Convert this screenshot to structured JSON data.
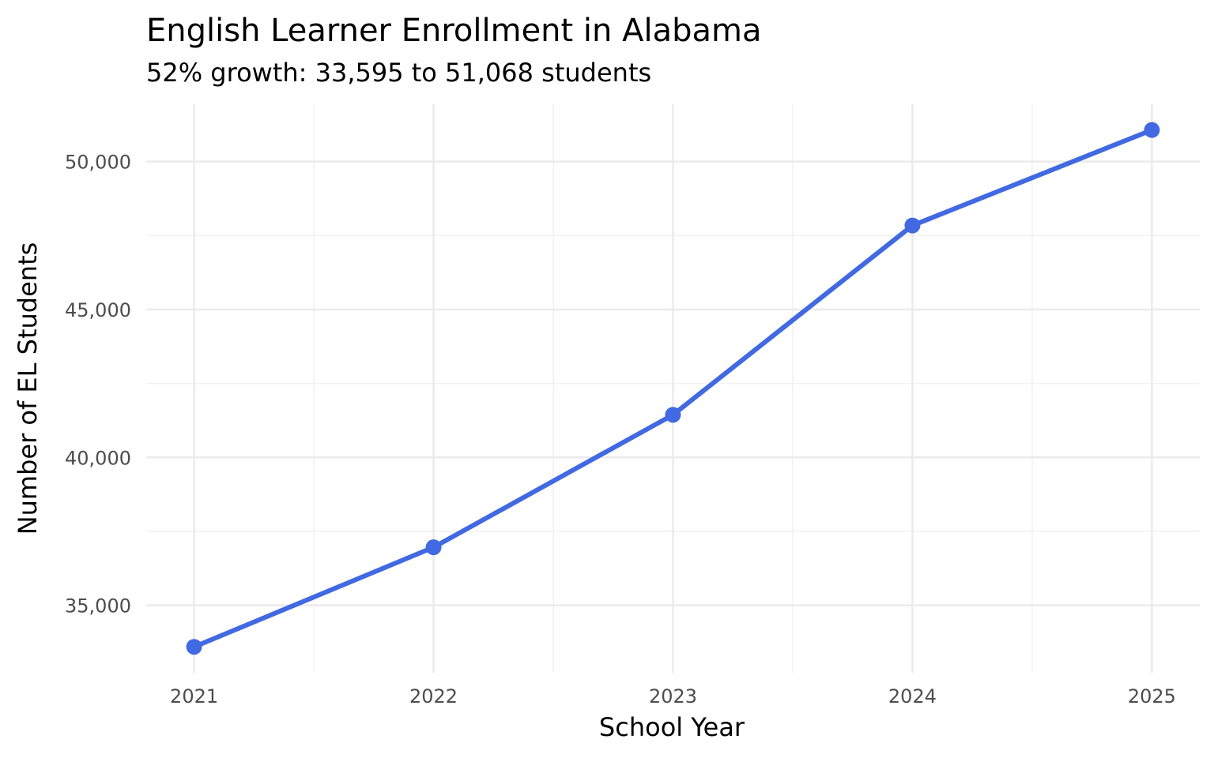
{
  "chart_data": {
    "type": "line",
    "title": "English Learner Enrollment in Alabama",
    "subtitle": "52% growth: 33,595 to 51,068 students",
    "xlabel": "School Year",
    "ylabel": "Number of EL Students",
    "x": [
      2021,
      2022,
      2023,
      2024,
      2025
    ],
    "x_tick_labels": [
      "2021",
      "2022",
      "2023",
      "2024",
      "2025"
    ],
    "series": [
      {
        "values": [
          33595,
          36960,
          41440,
          47840,
          51068
        ],
        "color": "#4169e1"
      }
    ],
    "y_ticks": [
      35000,
      40000,
      45000,
      50000
    ],
    "y_tick_labels": [
      "35,000",
      "40,000",
      "45,000",
      "50,000"
    ],
    "xlim": [
      2020.8,
      2025.2
    ],
    "ylim": [
      32720,
      51940
    ],
    "grid": true,
    "legend": "none"
  }
}
